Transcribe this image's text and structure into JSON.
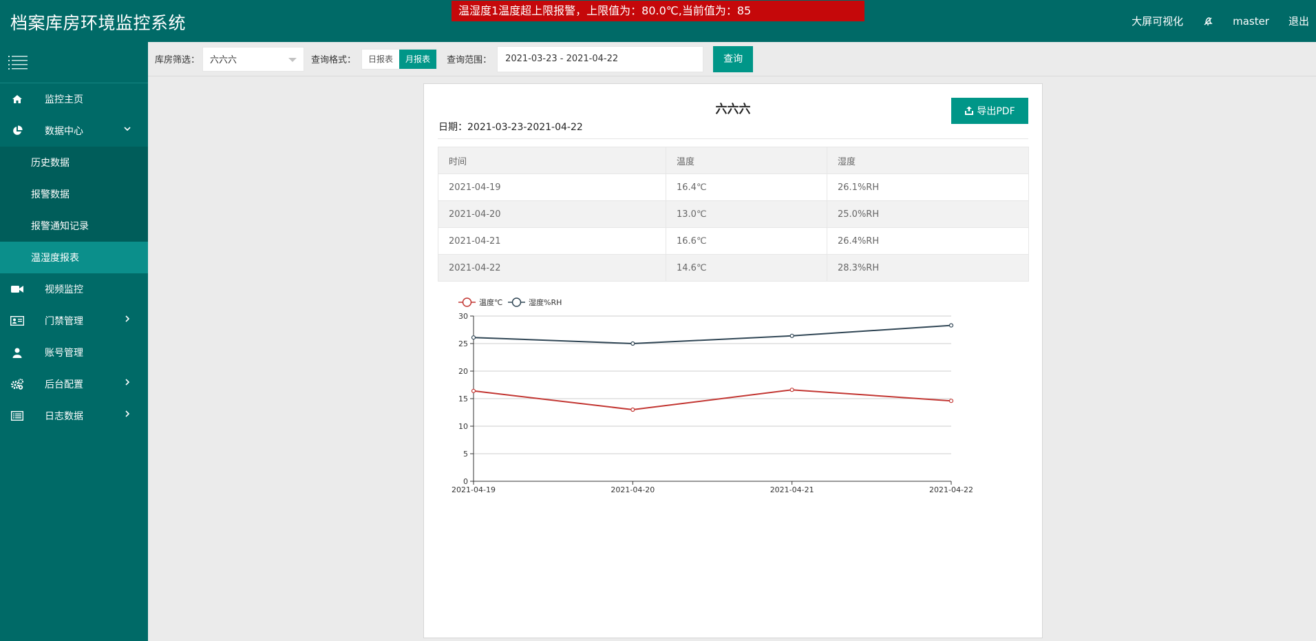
{
  "header": {
    "app_title": "档案库房环境监控系统",
    "alarm": "温湿度1温度超上限报警，上限值为：80.0℃,当前值为：85",
    "bigscreen": "大屏可视化",
    "user": "master",
    "logout": "退出"
  },
  "sidebar": {
    "items": [
      {
        "label": "监控主页",
        "icon": "home-icon"
      },
      {
        "label": "数据中心",
        "icon": "pie-chart-icon"
      },
      {
        "label": "视频监控",
        "icon": "video-camera-icon"
      },
      {
        "label": "门禁管理",
        "icon": "id-card-icon"
      },
      {
        "label": "账号管理",
        "icon": "user-icon"
      },
      {
        "label": "后台配置",
        "icon": "gears-icon"
      },
      {
        "label": "日志数据",
        "icon": "list-icon"
      }
    ],
    "sub_items": [
      {
        "label": "历史数据"
      },
      {
        "label": "报警数据"
      },
      {
        "label": "报警通知记录"
      },
      {
        "label": "温湿度报表",
        "active": true
      }
    ]
  },
  "toolbar": {
    "warehouse_label": "库房筛选：",
    "warehouse_value": "六六六",
    "format_label": "查询格式：",
    "daily": "日报表",
    "monthly": "月报表",
    "range_label": "查询范围：",
    "range_value": "2021-03-23 - 2021-04-22",
    "query": "查询"
  },
  "report": {
    "title": "六六六",
    "date": "日期：2021-03-23-2021-04-22",
    "export": "导出PDF",
    "columns": [
      "时间",
      "温度",
      "湿度"
    ],
    "rows": [
      [
        "2021-04-19",
        "16.4℃",
        "26.1%RH"
      ],
      [
        "2021-04-20",
        "13.0℃",
        "25.0%RH"
      ],
      [
        "2021-04-21",
        "16.6℃",
        "26.4%RH"
      ],
      [
        "2021-04-22",
        "14.6℃",
        "28.3%RH"
      ]
    ]
  },
  "chart_data": {
    "type": "line",
    "categories": [
      "2021-04-19",
      "2021-04-20",
      "2021-04-21",
      "2021-04-22"
    ],
    "series": [
      {
        "name": "温度℃",
        "values": [
          16.4,
          13.0,
          16.6,
          14.6
        ],
        "color": "#c23531"
      },
      {
        "name": "湿度%RH",
        "values": [
          26.1,
          25.0,
          26.4,
          28.3
        ],
        "color": "#2f4554"
      }
    ],
    "ylim": [
      0,
      30
    ],
    "yticks": [
      0,
      5,
      10,
      15,
      20,
      25,
      30
    ],
    "grid": true,
    "legend": "top-left"
  }
}
